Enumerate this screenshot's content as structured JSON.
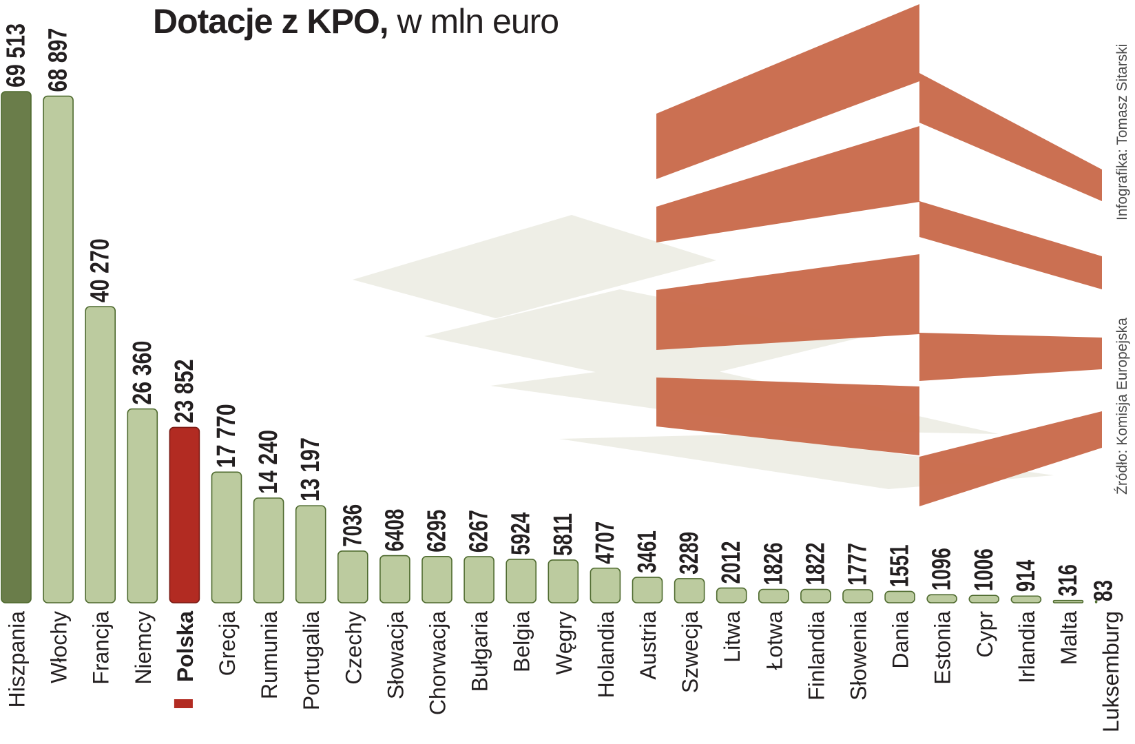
{
  "title": {
    "bold": "Dotacje z KPO,",
    "light": "w mln euro"
  },
  "credits": {
    "infographic": "Infografika: Tomasz Sitarski",
    "source": "Źródło: Komisja Europejska"
  },
  "colors": {
    "highlight_top": "#6a7d4a",
    "default_bar": "#bccb9f",
    "bar_stroke": "#4e6a2e",
    "poland": "#b22b22",
    "deco_orange": "#c96a4b",
    "deco_shadow": "#eeeee6",
    "text": "#231f20"
  },
  "chart_data": {
    "type": "bar",
    "title": "Dotacje z KPO, w mln euro",
    "xlabel": "",
    "ylabel": "mln euro",
    "ylim": [
      0,
      70000
    ],
    "categories": [
      "Hiszpania",
      "Włochy",
      "Francja",
      "Niemcy",
      "Polska",
      "Grecja",
      "Rumunia",
      "Portugalia",
      "Czechy",
      "Słowacja",
      "Chorwacja",
      "Bułgaria",
      "Belgia",
      "Węgry",
      "Holandia",
      "Austria",
      "Szwecja",
      "Litwa",
      "Łotwa",
      "Finlandia",
      "Słowenia",
      "Dania",
      "Estonia",
      "Cypr",
      "Irlandia",
      "Malta",
      "Luksemburg"
    ],
    "values": [
      69513,
      68897,
      40270,
      26360,
      23852,
      17770,
      14240,
      13197,
      7036,
      6408,
      6295,
      6267,
      5924,
      5811,
      4707,
      3461,
      3289,
      2012,
      1826,
      1822,
      1777,
      1551,
      1096,
      1006,
      914,
      316,
      83
    ],
    "value_labels": [
      "69 513",
      "68 897",
      "40 270",
      "26 360",
      "23 852",
      "17 770",
      "14 240",
      "13 197",
      "7036",
      "6408",
      "6295",
      "6267",
      "5924",
      "5811",
      "4707",
      "3461",
      "3289",
      "2012",
      "1826",
      "1822",
      "1777",
      "1551",
      "1096",
      "1006",
      "914",
      "316",
      "83"
    ],
    "highlight": {
      "top": "Hiszpania",
      "poland": "Polska"
    }
  }
}
